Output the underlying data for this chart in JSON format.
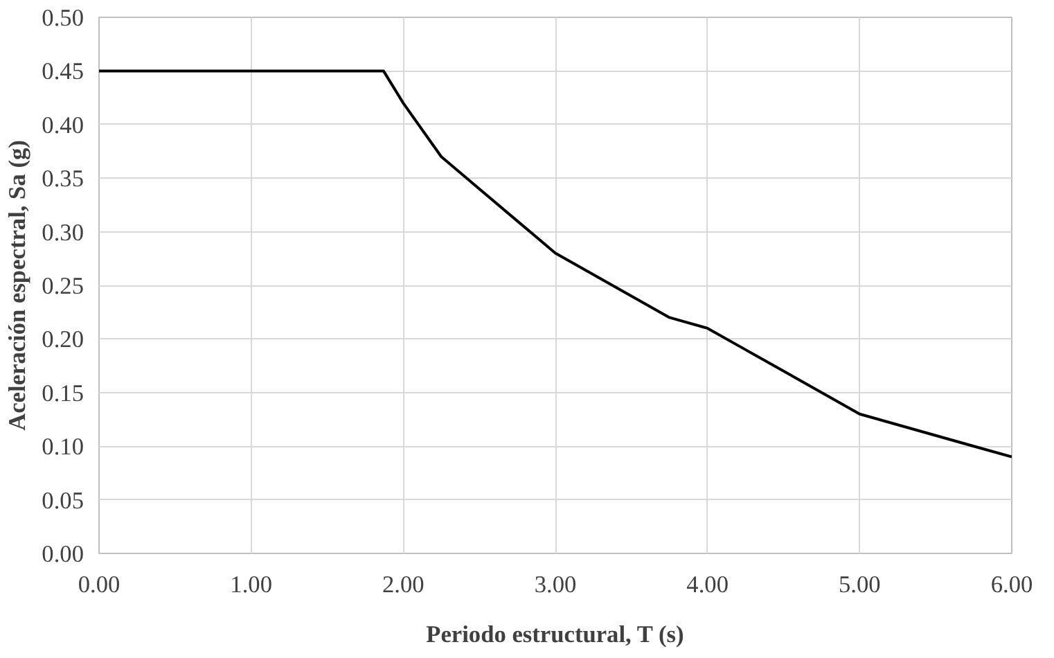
{
  "chart_data": {
    "type": "line",
    "xlabel": "Periodo estructural, T (s)",
    "ylabel": "Aceleración espectral, Sa (g)",
    "x": [
      0,
      1.87,
      2.0,
      2.25,
      2.5,
      2.75,
      3.0,
      3.25,
      3.5,
      3.75,
      4.0,
      4.25,
      4.5,
      4.75,
      5.0,
      5.25,
      5.5,
      5.75,
      6.0
    ],
    "series": [
      {
        "color": "#000000",
        "values": [
          0.45,
          0.45,
          0.42,
          0.37,
          0.34,
          0.31,
          0.28,
          0.26,
          0.24,
          0.22,
          0.21,
          0.19,
          0.17,
          0.15,
          0.13,
          0.12,
          0.11,
          0.1,
          0.09
        ]
      }
    ],
    "xlim": [
      0,
      6
    ],
    "ylim": [
      0,
      0.5
    ],
    "xticks": [
      {
        "value": 0,
        "label": "0.00"
      },
      {
        "value": 1,
        "label": "1.00"
      },
      {
        "value": 2,
        "label": "2.00"
      },
      {
        "value": 3,
        "label": "3.00"
      },
      {
        "value": 4,
        "label": "4.00"
      },
      {
        "value": 5,
        "label": "5.00"
      },
      {
        "value": 6,
        "label": "6.00"
      }
    ],
    "yticks": [
      {
        "value": 0,
        "label": "0.00"
      },
      {
        "value": 0.05,
        "label": "0.05"
      },
      {
        "value": 0.1,
        "label": "0.10"
      },
      {
        "value": 0.15,
        "label": "0.15"
      },
      {
        "value": 0.2,
        "label": "0.20"
      },
      {
        "value": 0.25,
        "label": "0.25"
      },
      {
        "value": 0.3,
        "label": "0.30"
      },
      {
        "value": 0.35,
        "label": "0.35"
      },
      {
        "value": 0.4,
        "label": "0.40"
      },
      {
        "value": 0.45,
        "label": "0.45"
      },
      {
        "value": 0.5,
        "label": "0.50"
      }
    ],
    "grid": true,
    "marker": "none",
    "line_style": "solid"
  }
}
